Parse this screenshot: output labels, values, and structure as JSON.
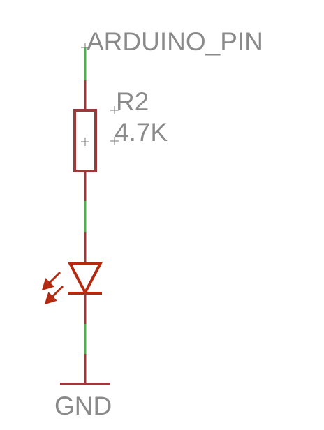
{
  "colors": {
    "background": "#ffffff",
    "wire": "#4caf50",
    "part": "#9b3a3a",
    "led_emission": "#b42a10",
    "text": "#8a8a8a",
    "origin_cross": "#7a7a7a"
  },
  "labels": {
    "net_top": "ARDUINO_PIN",
    "resistor_name": "R2",
    "resistor_value": "4.7K",
    "ground": "GND"
  },
  "components": [
    {
      "kind": "net-label",
      "text": "ARDUINO_PIN"
    },
    {
      "kind": "resistor",
      "name": "R2",
      "value": "4.7K",
      "orientation": "vertical"
    },
    {
      "kind": "led",
      "orientation": "anode-top"
    },
    {
      "kind": "ground-symbol",
      "text": "GND"
    }
  ],
  "icons": [
    "resistor-icon",
    "led-icon",
    "light-emission-arrows-icon",
    "ground-icon",
    "origin-cross-icon"
  ]
}
